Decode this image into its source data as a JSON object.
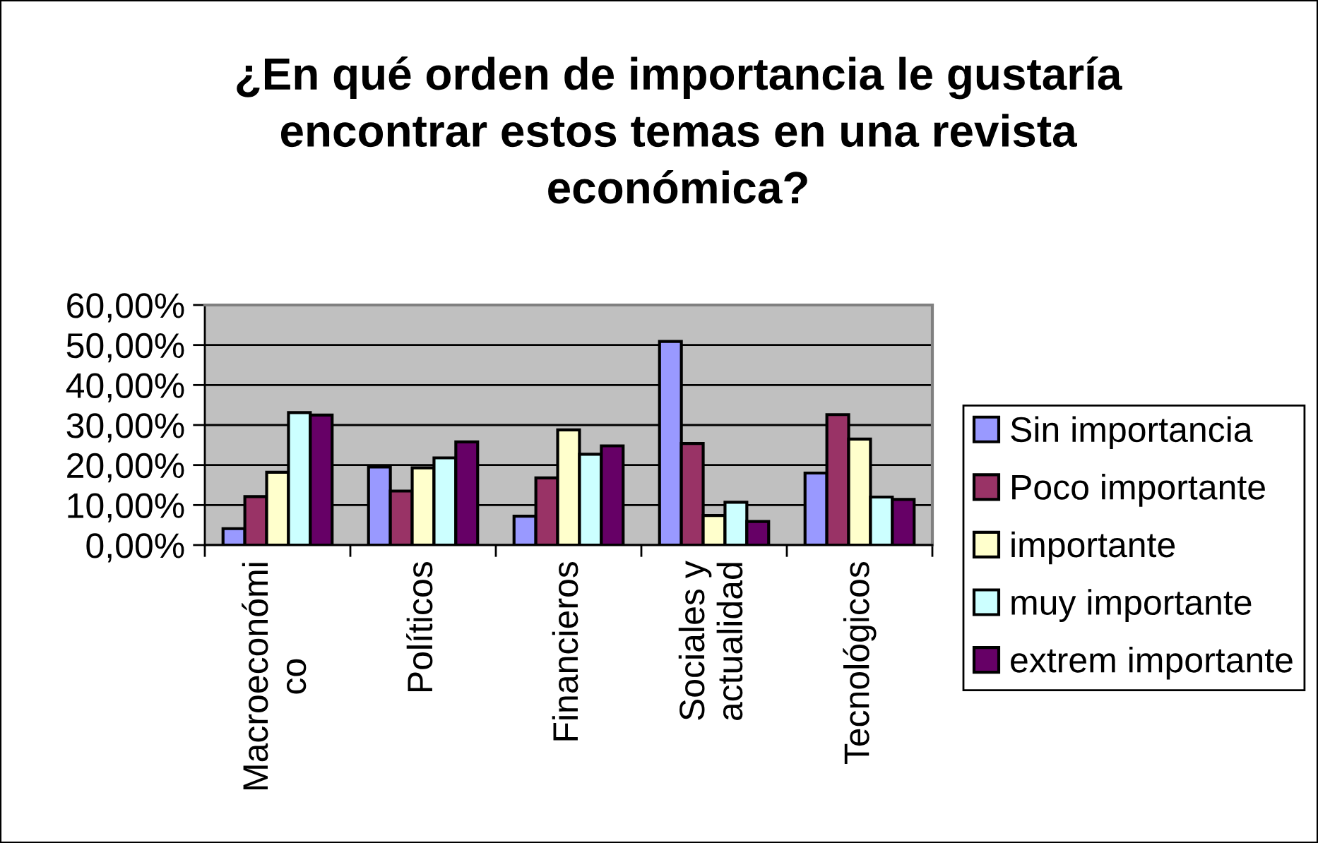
{
  "chart_data": {
    "type": "bar",
    "title": "¿En qué orden de importancia le gustaría\nencontrar estos temas en una revista\neconómica?",
    "categories": [
      "Macroeconómi\nco",
      "Políticos",
      "Financieros",
      "Sociales y\nactualidad",
      "Tecnológicos"
    ],
    "series": [
      {
        "name": "Sin importancia",
        "color": "#9999ff",
        "values": [
          4.1,
          19.5,
          7.2,
          50.9,
          18.0
        ]
      },
      {
        "name": "Poco importante",
        "color": "#993366",
        "values": [
          12.1,
          13.5,
          16.8,
          25.4,
          32.6
        ]
      },
      {
        "name": "importante",
        "color": "#ffffcc",
        "values": [
          18.2,
          19.3,
          28.8,
          7.4,
          26.5
        ]
      },
      {
        "name": "muy importante",
        "color": "#ccffff",
        "values": [
          33.1,
          21.8,
          22.7,
          10.7,
          12.0
        ]
      },
      {
        "name": "extrem importante",
        "color": "#660066",
        "values": [
          32.5,
          25.8,
          24.8,
          5.9,
          11.4
        ]
      }
    ],
    "ylim": [
      0,
      60
    ],
    "yticks": [
      {
        "value": 0,
        "label": "0,00%"
      },
      {
        "value": 10,
        "label": "10,00%"
      },
      {
        "value": 20,
        "label": "20,00%"
      },
      {
        "value": 30,
        "label": "30,00%"
      },
      {
        "value": 40,
        "label": "40,00%"
      },
      {
        "value": 50,
        "label": "50,00%"
      },
      {
        "value": 60,
        "label": "60,00%"
      }
    ],
    "grid": "y",
    "legend": "right"
  }
}
